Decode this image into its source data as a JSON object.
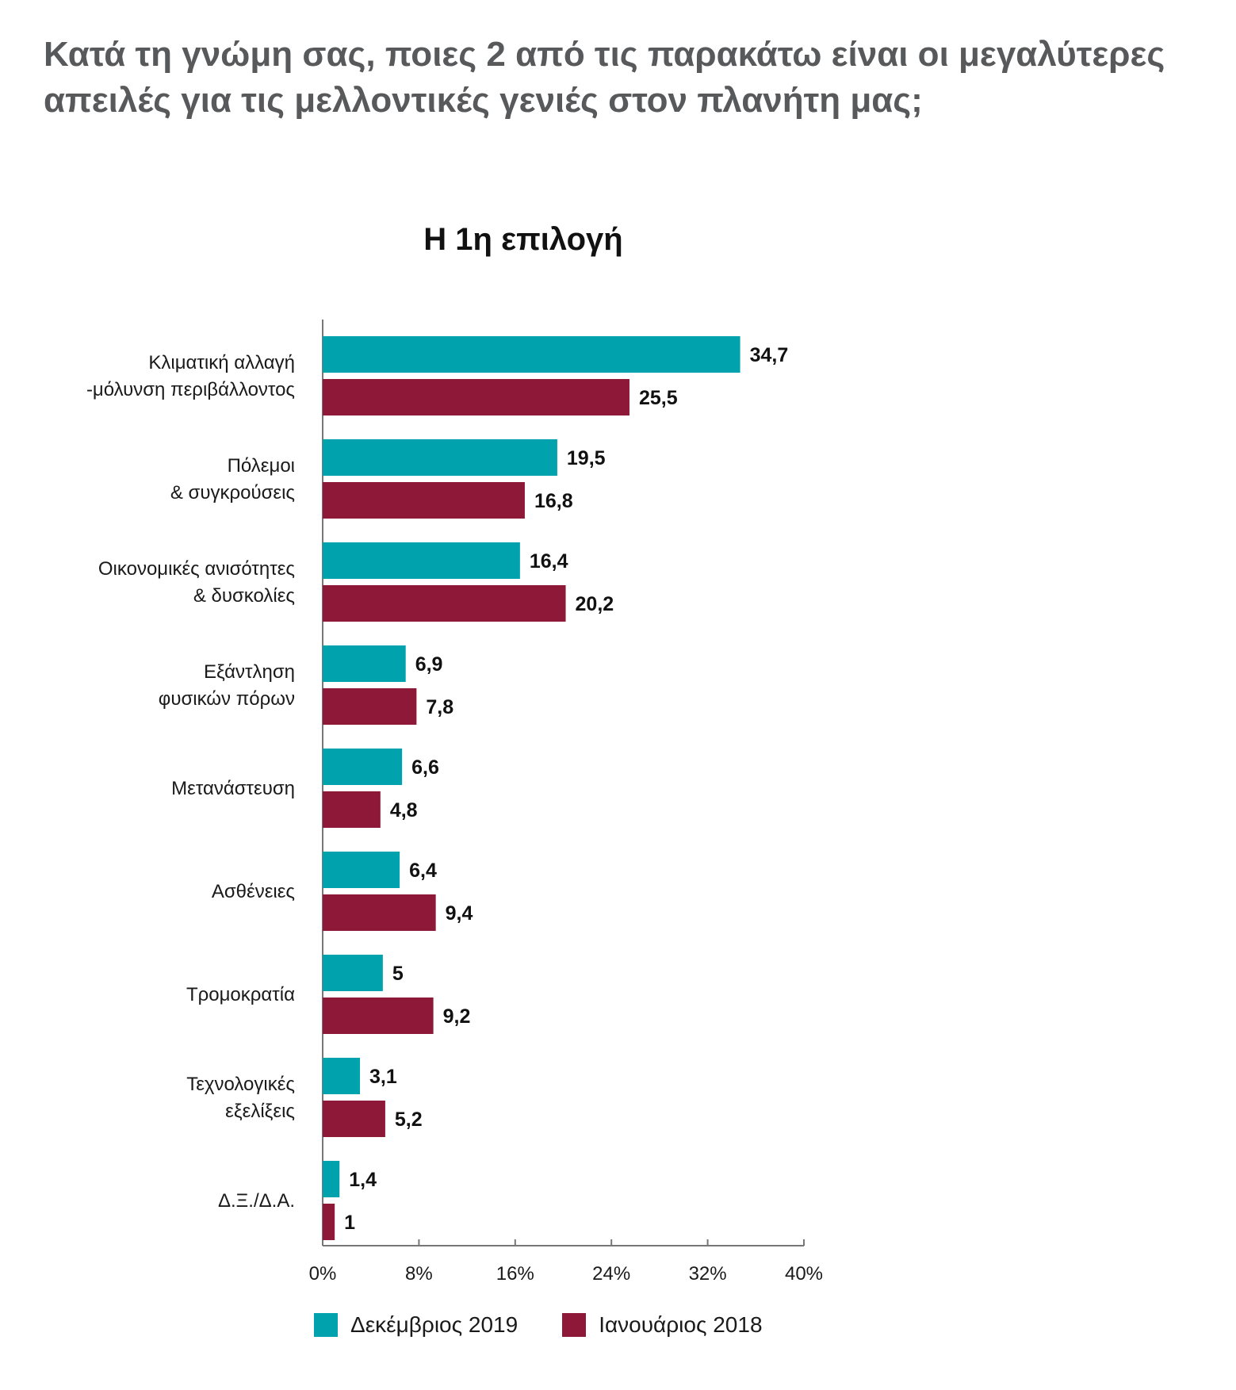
{
  "header": {
    "title": "Κατά τη γνώμη σας, ποιες 2 από τις παρακάτω είναι οι μεγαλύτερες απειλές για τις μελλοντικές γενιές στον πλανήτη μας;"
  },
  "chart_data": {
    "type": "bar",
    "orientation": "horizontal",
    "title": "Η 1η επιλογή",
    "categories": [
      [
        "Κλιματική αλλαγή",
        "-μόλυνση περιβάλλοντος"
      ],
      [
        "Πόλεμοι",
        "& συγκρούσεις"
      ],
      [
        "Οικονομικές ανισότητες",
        "& δυσκολίες"
      ],
      [
        "Εξάντληση",
        "φυσικών πόρων"
      ],
      [
        "Μετανάστευση"
      ],
      [
        "Ασθένειες"
      ],
      [
        "Τρομοκρατία"
      ],
      [
        "Τεχνολογικές",
        "εξελίξεις"
      ],
      [
        "Δ.Ξ./Δ.Α."
      ]
    ],
    "series": [
      {
        "name": "Δεκέμβριος 2019",
        "color": "#00a3ad",
        "values": [
          34.7,
          19.5,
          16.4,
          6.9,
          6.6,
          6.4,
          5,
          3.1,
          1.4
        ],
        "labels": [
          "34,7",
          "19,5",
          "16,4",
          "6,9",
          "6,6",
          "6,4",
          "5",
          "3,1",
          "1,4"
        ]
      },
      {
        "name": "Ιανουάριος 2018",
        "color": "#8e1838",
        "values": [
          25.5,
          16.8,
          20.2,
          7.8,
          4.8,
          9.4,
          9.2,
          5.2,
          1
        ],
        "labels": [
          "25,5",
          "16,8",
          "20,2",
          "7,8",
          "4,8",
          "9,4",
          "9,2",
          "5,2",
          "1"
        ]
      }
    ],
    "xlim": [
      0,
      40
    ],
    "xticks": [
      0,
      8,
      16,
      24,
      32,
      40
    ],
    "xtick_labels": [
      "0%",
      "8%",
      "16%",
      "24%",
      "32%",
      "40%"
    ],
    "grid": false,
    "legend_position": "bottom"
  }
}
